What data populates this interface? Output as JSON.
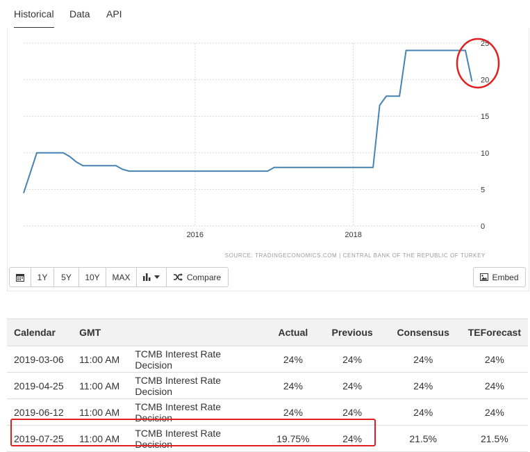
{
  "tabs": [
    {
      "label": "Historical",
      "active": true
    },
    {
      "label": "Data",
      "active": false
    },
    {
      "label": "API",
      "active": false
    }
  ],
  "chart_data": {
    "type": "line",
    "xlabel": "",
    "ylabel": "",
    "x_ticks": [
      "2016",
      "2018"
    ],
    "y_ticks": [
      0,
      5,
      10,
      15,
      20,
      25
    ],
    "ylim": [
      0,
      25
    ],
    "xlim": [
      "2013-11",
      "2019-08"
    ],
    "grid": true,
    "source": "SOURCE: TRADINGECONOMICS.COM  |  CENTRAL BANK OF THE REPUBLIC OF TURKEY",
    "line_color": "#4682b4",
    "series": [
      {
        "x": [
          "2013-11",
          "2014-01",
          "2014-03",
          "2014-05",
          "2014-06",
          "2014-07",
          "2014-08",
          "2015-01",
          "2015-02",
          "2015-03",
          "2016-03",
          "2016-04",
          "2016-05",
          "2016-06",
          "2016-09",
          "2016-11",
          "2016-12",
          "2017-01",
          "2017-02",
          "2018-04",
          "2018-05",
          "2018-06",
          "2018-07",
          "2018-08",
          "2018-09",
          "2019-06",
          "2019-07"
        ],
        "y": [
          4.5,
          10,
          10,
          10,
          9.5,
          8.75,
          8.25,
          8.25,
          7.75,
          7.5,
          7.5,
          7.5,
          7.5,
          7.5,
          7.5,
          7.5,
          7.5,
          8.0,
          8.0,
          8.0,
          16.5,
          17.75,
          17.75,
          17.75,
          24,
          24,
          19.75
        ]
      }
    ]
  },
  "controls": {
    "buttons": [
      "1Y",
      "5Y",
      "10Y",
      "MAX"
    ],
    "calendar_icon": "calendar-icon",
    "chart_type_icon": "bar-chart-icon",
    "compare_label": "Compare",
    "embed_label": "Embed"
  },
  "table": {
    "headers": [
      "Calendar",
      "GMT",
      "",
      "Actual",
      "Previous",
      "Consensus",
      "TEForecast"
    ],
    "rows": [
      [
        "2019-03-06",
        "11:00 AM",
        "TCMB Interest Rate Decision",
        "24%",
        "24%",
        "24%",
        "24%"
      ],
      [
        "2019-04-25",
        "11:00 AM",
        "TCMB Interest Rate Decision",
        "24%",
        "24%",
        "24%",
        "24%"
      ],
      [
        "2019-06-12",
        "11:00 AM",
        "TCMB Interest Rate Decision",
        "24%",
        "24%",
        "24%",
        "24%"
      ],
      [
        "2019-07-25",
        "11:00 AM",
        "TCMB Interest Rate Decision",
        "19.75%",
        "24%",
        "21.5%",
        "21.5%"
      ]
    ]
  },
  "annotation_color": "#e02020"
}
